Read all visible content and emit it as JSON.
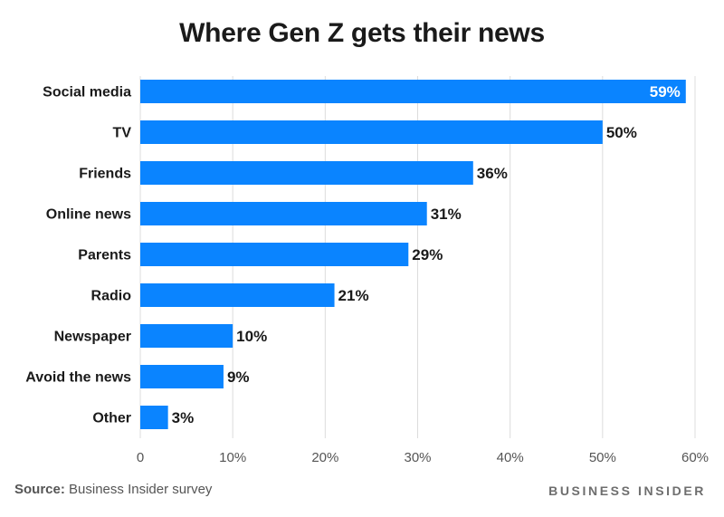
{
  "chart_data": {
    "type": "bar",
    "orientation": "horizontal",
    "title": "Where Gen Z gets their news",
    "categories": [
      "Social media",
      "TV",
      "Friends",
      "Online news",
      "Parents",
      "Radio",
      "Newspaper",
      "Avoid the news",
      "Other"
    ],
    "values": [
      59,
      50,
      36,
      31,
      29,
      21,
      10,
      9,
      3
    ],
    "value_labels": [
      "59%",
      "50%",
      "36%",
      "31%",
      "29%",
      "21%",
      "10%",
      "9%",
      "3%"
    ],
    "xlim": [
      0,
      60
    ],
    "x_ticks": [
      0,
      10,
      20,
      30,
      40,
      50,
      60
    ],
    "x_tick_labels": [
      "0",
      "10%",
      "20%",
      "30%",
      "40%",
      "50%",
      "60%"
    ],
    "xlabel": "",
    "ylabel": "",
    "grid": true,
    "legend": "none",
    "bar_color": "#0a84ff",
    "grid_color": "#dcdcdc"
  },
  "footer": {
    "source_label": "Source:",
    "source_text": "Business Insider survey",
    "brand": "BUSINESS INSIDER"
  }
}
